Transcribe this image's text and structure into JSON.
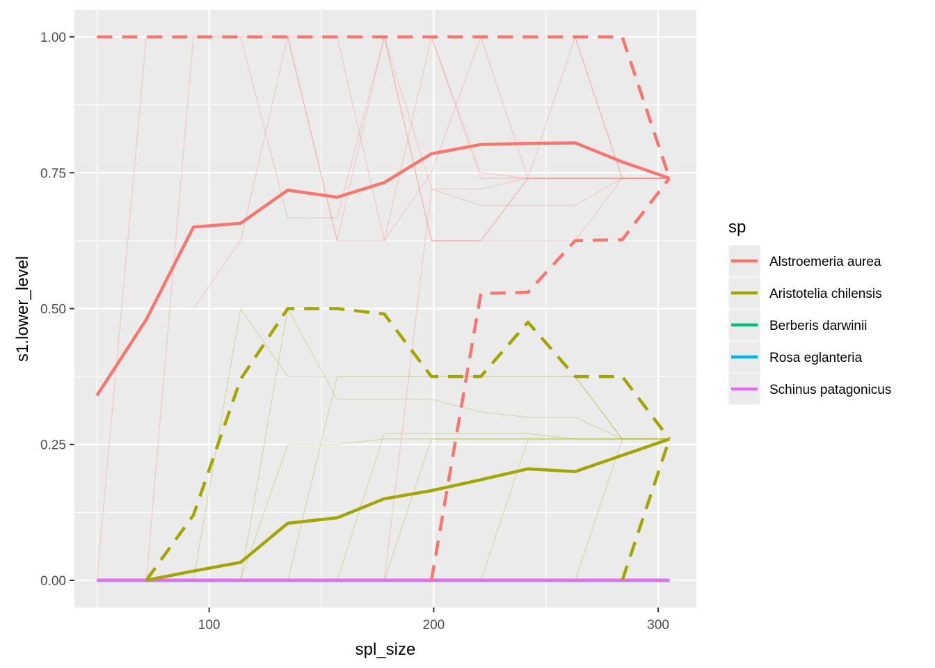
{
  "chart_data": {
    "type": "line",
    "xlabel": "spl_size",
    "ylabel": "s1.lower_level",
    "xlim": [
      40,
      317
    ],
    "ylim": [
      -0.05,
      1.05
    ],
    "x_ticks": [
      100,
      200,
      300
    ],
    "x_tick_labels": [
      "100",
      "200",
      "300"
    ],
    "x_minor_ticks": [
      50,
      150,
      250
    ],
    "y_ticks": [
      0,
      0.25,
      0.5,
      0.75,
      1.0
    ],
    "y_tick_labels": [
      "0.00",
      "0.25",
      "0.50",
      "0.75",
      "1.00"
    ],
    "y_minor_ticks": [
      0.125,
      0.375,
      0.625,
      0.875
    ],
    "grid": true,
    "background": "#ebebeb",
    "legend": {
      "title": "sp",
      "position": "right",
      "entries": [
        {
          "label": "Alstroemeria aurea",
          "color": "#F8766D"
        },
        {
          "label": "Aristotelia chilensis",
          "color": "#A3A500"
        },
        {
          "label": "Berberis darwinii",
          "color": "#00BF7D"
        },
        {
          "label": "Rosa eglanteria",
          "color": "#00B0F6"
        },
        {
          "label": "Schinus patagonicus",
          "color": "#E76BF3"
        }
      ]
    },
    "x": [
      50,
      72,
      93,
      114,
      135,
      157,
      178,
      199,
      221,
      242,
      263,
      284,
      305
    ],
    "series": [
      {
        "name": "Alstroemeria aurea",
        "color": "#F8766D",
        "style": "mean",
        "values": [
          0.34,
          0.48,
          0.65,
          0.657,
          0.718,
          0.705,
          0.732,
          0.785,
          0.802,
          0.804,
          0.805,
          0.77,
          0.74
        ]
      },
      {
        "name": "Alstroemeria aurea",
        "color": "#F8766D",
        "style": "upper",
        "values": [
          1,
          1,
          1,
          1,
          1,
          1,
          1,
          1,
          1,
          1,
          1,
          1,
          0.74
        ]
      },
      {
        "name": "Alstroemeria aurea",
        "color": "#F8766D",
        "style": "lower",
        "x": [
          199,
          221,
          242,
          263,
          284,
          305
        ],
        "values": [
          0.0,
          0.528,
          0.53,
          0.625,
          0.627,
          0.74
        ]
      },
      {
        "name": "Aristotelia chilensis",
        "color": "#A3A500",
        "style": "mean",
        "x": [
          72,
          93,
          114,
          135,
          157,
          178,
          199,
          221,
          242,
          263,
          284,
          305
        ],
        "values": [
          0.0,
          0.017,
          0.033,
          0.105,
          0.115,
          0.15,
          0.165,
          0.185,
          0.205,
          0.2,
          0.23,
          0.26
        ]
      },
      {
        "name": "Aristotelia chilensis",
        "color": "#A3A500",
        "style": "upper",
        "x": [
          72,
          93,
          114,
          135,
          157,
          178,
          199,
          221,
          242,
          263,
          284,
          305
        ],
        "values": [
          0.0,
          0.12,
          0.37,
          0.5,
          0.5,
          0.49,
          0.375,
          0.375,
          0.475,
          0.375,
          0.375,
          0.26
        ]
      },
      {
        "name": "Aristotelia chilensis",
        "color": "#A3A500",
        "style": "lower",
        "x": [
          284,
          305
        ],
        "values": [
          0.0,
          0.26
        ]
      },
      {
        "name": "Berberis darwinii",
        "color": "#00BF7D",
        "style": "mean",
        "values": [
          0,
          0,
          0,
          0,
          0,
          0,
          0,
          0,
          0,
          0,
          0,
          0,
          0
        ]
      },
      {
        "name": "Rosa eglanteria",
        "color": "#00B0F6",
        "style": "mean",
        "values": [
          0,
          0,
          0,
          0,
          0,
          0,
          0,
          0,
          0,
          0,
          0,
          0,
          0
        ]
      },
      {
        "name": "Schinus patagonicus",
        "color": "#E76BF3",
        "style": "mean",
        "values": [
          0,
          0,
          0,
          0,
          0,
          0,
          0,
          0,
          0,
          0,
          0,
          0,
          0
        ]
      }
    ],
    "replicates": [
      {
        "color": "#F8766D",
        "x": [
          50,
          72,
          93,
          114,
          135,
          157,
          178,
          199,
          221,
          242,
          263,
          284,
          305
        ],
        "values": [
          0,
          1,
          1,
          1,
          1,
          1,
          1,
          1,
          1,
          1,
          1,
          0.74,
          0.74
        ]
      },
      {
        "color": "#F8766D",
        "x": [
          72,
          93,
          114,
          135,
          157,
          178,
          199,
          221,
          242,
          263,
          284,
          305
        ],
        "values": [
          0,
          1,
          1,
          1,
          1,
          1,
          0.625,
          0.625,
          0.625,
          0.625,
          0.74,
          0.74
        ]
      },
      {
        "color": "#F8766D",
        "x": [
          93,
          114,
          135,
          157,
          178,
          199,
          221,
          242,
          263,
          284,
          305
        ],
        "values": [
          0.5,
          0.625,
          1,
          0.625,
          0.625,
          1,
          0.75,
          0.74,
          0.74,
          0.74,
          0.74
        ]
      },
      {
        "color": "#F8766D",
        "x": [
          114,
          135,
          157,
          178,
          199,
          221,
          242,
          263,
          284,
          305
        ],
        "values": [
          1,
          0.667,
          0.667,
          1,
          0.625,
          0.625,
          0.74,
          0.74,
          0.74,
          0.74
        ]
      },
      {
        "color": "#F8766D",
        "x": [
          135,
          157,
          178,
          199,
          221,
          242,
          263,
          284,
          305
        ],
        "values": [
          1,
          0.625,
          1,
          0.72,
          0.72,
          0.74,
          0.74,
          0.74,
          0.74
        ]
      },
      {
        "color": "#F8766D",
        "x": [
          157,
          178,
          199,
          221,
          242,
          263,
          284,
          305
        ],
        "values": [
          1,
          0.625,
          0.75,
          1,
          0.74,
          1,
          0.74,
          0.74
        ]
      },
      {
        "color": "#F8766D",
        "x": [
          178,
          199,
          221,
          242,
          263,
          284,
          305
        ],
        "values": [
          0.0,
          0.72,
          0.69,
          0.69,
          0.69,
          0.74,
          0.74
        ]
      },
      {
        "color": "#F8766D",
        "x": [
          199,
          221,
          242,
          263,
          284,
          305
        ],
        "values": [
          1,
          0.74,
          0.74,
          0.74,
          0.74,
          0.74
        ]
      },
      {
        "color": "#F8766D",
        "x": [
          199,
          221,
          242,
          263,
          284,
          305
        ],
        "values": [
          0.625,
          0.625,
          0.74,
          0.74,
          0.74,
          0.74
        ]
      },
      {
        "color": "#A3A500",
        "x": [
          93,
          114,
          135,
          157,
          178,
          199,
          221,
          242,
          263,
          284,
          305
        ],
        "values": [
          0,
          0.5,
          0.375,
          0.375,
          0.375,
          0.375,
          0.375,
          0.375,
          0.375,
          0.26,
          0.26
        ]
      },
      {
        "color": "#A3A500",
        "x": [
          114,
          135,
          157,
          178,
          199,
          221,
          242,
          263,
          284,
          305
        ],
        "values": [
          0,
          0.5,
          0.333,
          0.333,
          0.333,
          0.31,
          0.3,
          0.3,
          0.26,
          0.26
        ]
      },
      {
        "color": "#A3A500",
        "x": [
          114,
          135,
          157,
          178,
          199,
          221,
          242,
          263,
          284,
          305
        ],
        "values": [
          0,
          0.25,
          0.25,
          0.26,
          0.26,
          0.26,
          0.26,
          0.26,
          0.26,
          0.26
        ]
      },
      {
        "color": "#A3A500",
        "x": [
          135,
          157,
          178,
          199,
          221,
          242,
          263,
          284,
          305
        ],
        "values": [
          0,
          0.375,
          0.375,
          0.375,
          0.375,
          0.375,
          0.375,
          0.26,
          0.26
        ]
      },
      {
        "color": "#A3A500",
        "x": [
          157,
          178,
          199,
          221,
          242,
          263,
          284,
          305
        ],
        "values": [
          0,
          0.27,
          0.27,
          0.27,
          0.27,
          0.26,
          0.26,
          0.26
        ]
      },
      {
        "color": "#A3A500",
        "x": [
          178,
          199,
          221,
          242,
          263,
          284,
          305
        ],
        "values": [
          0,
          0.26,
          0.26,
          0.26,
          0.26,
          0.26,
          0.26
        ]
      },
      {
        "color": "#A3A500",
        "x": [
          221,
          242,
          263,
          284,
          305
        ],
        "values": [
          0,
          0.26,
          0.26,
          0.26,
          0.26
        ]
      },
      {
        "color": "#A3A500",
        "x": [
          263,
          284,
          305
        ],
        "values": [
          0,
          0.26,
          0.26
        ]
      }
    ]
  }
}
